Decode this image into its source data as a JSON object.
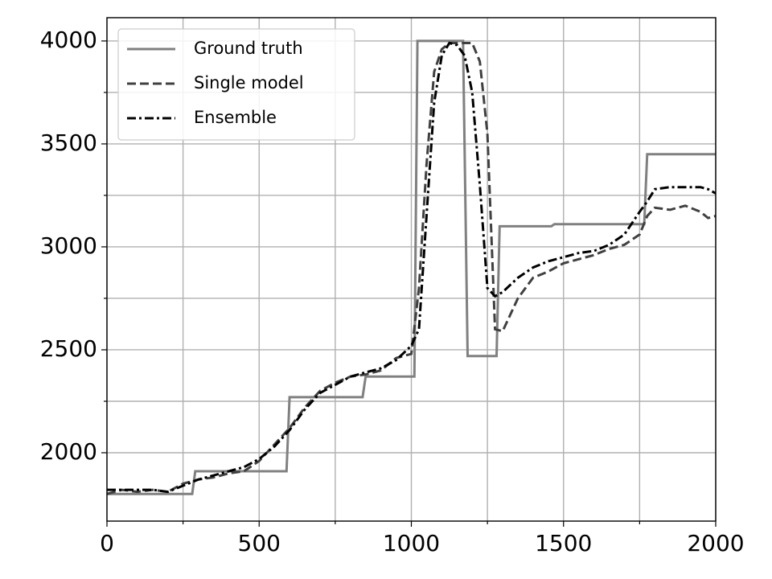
{
  "chart_data": {
    "type": "line",
    "xlim": [
      0,
      2000
    ],
    "xticks": [
      0,
      500,
      1000,
      1500,
      2000
    ],
    "xminorticks": [
      250,
      750,
      1250,
      1750
    ],
    "ylim": [
      1668,
      4113
    ],
    "yticks": [
      2000,
      2500,
      3000,
      3500,
      4000
    ],
    "yminorticks": [
      2250,
      2750,
      3250,
      3750
    ],
    "grid": true,
    "legend": "upper left",
    "series": [
      {
        "name": "Ground truth",
        "color": "#808080",
        "dash": "solid",
        "x": [
          0,
          280,
          290,
          590,
          600,
          840,
          850,
          1010,
          1020,
          1170,
          1185,
          1280,
          1290,
          1460,
          1470,
          1765,
          1775,
          2000
        ],
        "values": [
          1800,
          1800,
          1910,
          1910,
          2270,
          2270,
          2370,
          2370,
          4000,
          4000,
          2470,
          2470,
          3100,
          3100,
          3110,
          3110,
          3450,
          3450
        ]
      },
      {
        "name": "Single model",
        "color": "#404040",
        "dash": "dashed",
        "x": [
          0,
          50,
          100,
          150,
          200,
          250,
          300,
          350,
          400,
          450,
          500,
          550,
          600,
          650,
          700,
          750,
          800,
          850,
          900,
          950,
          1000,
          1025,
          1050,
          1075,
          1100,
          1125,
          1150,
          1175,
          1200,
          1225,
          1250,
          1275,
          1300,
          1350,
          1400,
          1450,
          1500,
          1550,
          1600,
          1650,
          1700,
          1750,
          1775,
          1800,
          1850,
          1900,
          1950,
          1975,
          2000
        ],
        "values": [
          1800,
          1820,
          1810,
          1820,
          1810,
          1850,
          1870,
          1880,
          1900,
          1910,
          1960,
          2040,
          2120,
          2220,
          2300,
          2340,
          2370,
          2380,
          2400,
          2460,
          2480,
          2800,
          3400,
          3850,
          3960,
          3990,
          3990,
          3990,
          3990,
          3900,
          3550,
          2600,
          2590,
          2750,
          2850,
          2880,
          2920,
          2940,
          2960,
          2990,
          3010,
          3060,
          3150,
          3190,
          3180,
          3200,
          3170,
          3140,
          3150
        ]
      },
      {
        "name": "Ensemble",
        "color": "#000000",
        "dash": "dashdot",
        "x": [
          0,
          50,
          100,
          150,
          200,
          250,
          300,
          350,
          400,
          450,
          500,
          550,
          600,
          650,
          700,
          750,
          800,
          850,
          900,
          950,
          1000,
          1025,
          1050,
          1075,
          1100,
          1125,
          1150,
          1175,
          1200,
          1225,
          1250,
          1275,
          1300,
          1350,
          1400,
          1450,
          1500,
          1550,
          1600,
          1650,
          1700,
          1750,
          1775,
          1800,
          1850,
          1900,
          1950,
          1975,
          2000
        ],
        "values": [
          1820,
          1820,
          1820,
          1820,
          1810,
          1840,
          1870,
          1890,
          1910,
          1930,
          1970,
          2030,
          2110,
          2210,
          2290,
          2330,
          2370,
          2390,
          2410,
          2450,
          2520,
          2600,
          3150,
          3700,
          3930,
          3990,
          3980,
          3930,
          3750,
          3300,
          2800,
          2760,
          2780,
          2850,
          2900,
          2930,
          2950,
          2970,
          2980,
          3010,
          3060,
          3170,
          3220,
          3280,
          3290,
          3290,
          3290,
          3280,
          3260
        ]
      }
    ]
  }
}
